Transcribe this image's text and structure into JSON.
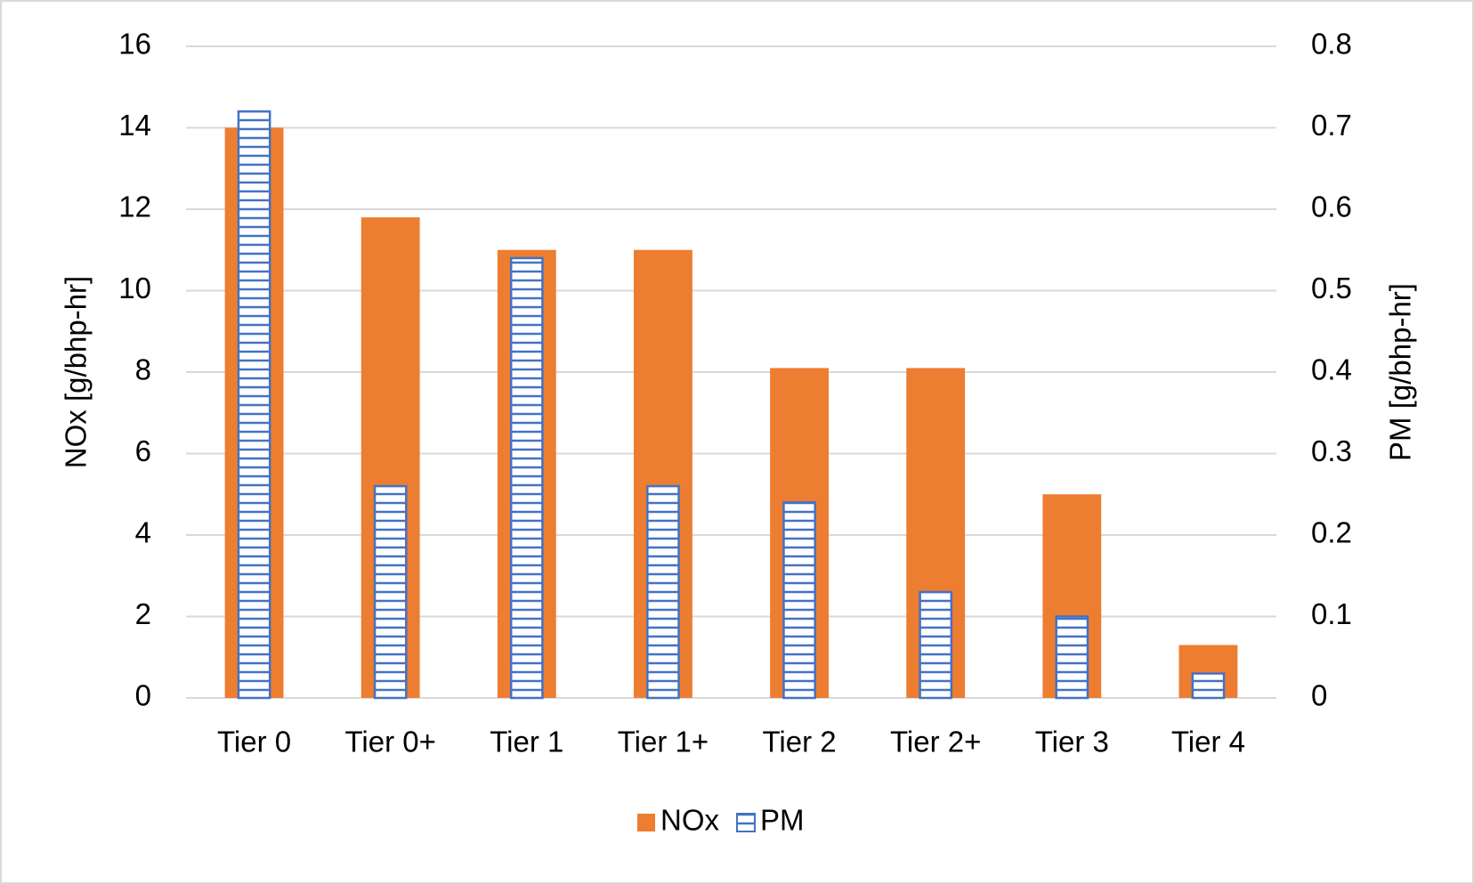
{
  "chart_data": {
    "type": "bar",
    "categories": [
      "Tier 0",
      "Tier 0+",
      "Tier 1",
      "Tier 1+",
      "Tier 2",
      "Tier 2+",
      "Tier 3",
      "Tier 4"
    ],
    "series": [
      {
        "name": "NOx",
        "color": "#ed7d31",
        "values": [
          14,
          11.8,
          11,
          11,
          8.1,
          8.1,
          5,
          1.3
        ]
      },
      {
        "name": "PM",
        "color": "#4472c4",
        "axis": "y2",
        "values": [
          0.72,
          0.26,
          0.54,
          0.26,
          0.24,
          0.13,
          0.1,
          0.03
        ]
      }
    ],
    "ylabel": "NOx [g/bhp-hr]",
    "y2label": "PM [g/bhp-hr]",
    "ylim": [
      0,
      16
    ],
    "yticks": [
      0,
      2,
      4,
      6,
      8,
      10,
      12,
      14,
      16
    ],
    "y2lim": [
      0,
      0.8
    ],
    "y2ticks": [
      0,
      0.1,
      0.2,
      0.3,
      0.4,
      0.5,
      0.6,
      0.7,
      0.8
    ],
    "grid": true,
    "legend": "bottom"
  }
}
